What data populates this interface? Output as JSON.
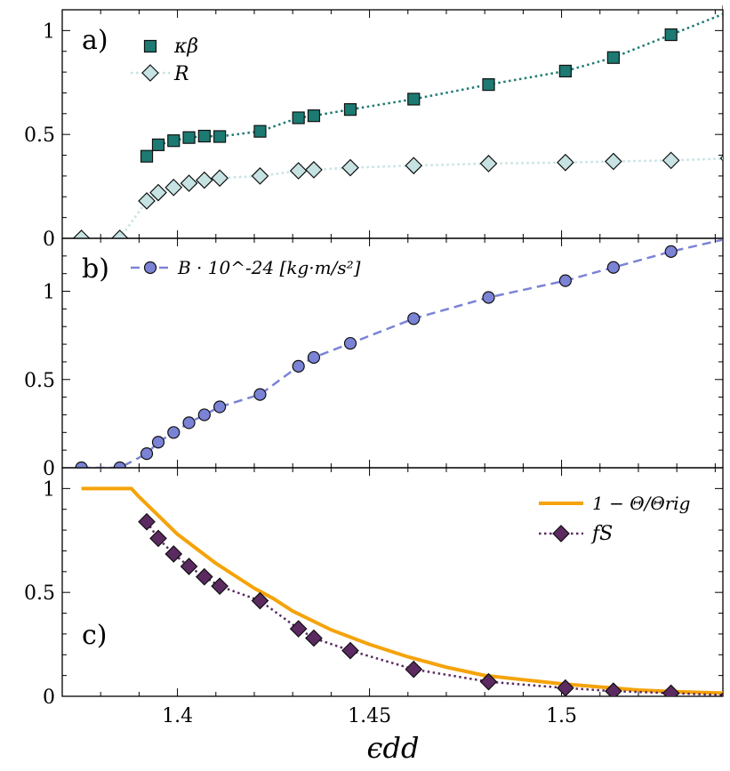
{
  "chart_data": [
    {
      "type": "scatter",
      "panel_label": "a)",
      "ylim": [
        0,
        1.1
      ],
      "ytick_labels": [
        "0",
        "0.5",
        "1"
      ],
      "ytick_values": [
        0,
        0.5,
        1
      ],
      "legend_placement": "top-left",
      "series": [
        {
          "name": "κβ",
          "color": "#1d7a73",
          "marker": "square",
          "line": "dotted",
          "points": [
            [
              1.392,
              0.395
            ],
            [
              1.395,
              0.45
            ],
            [
              1.399,
              0.47
            ],
            [
              1.403,
              0.485
            ],
            [
              1.407,
              0.492
            ],
            [
              1.411,
              0.49
            ],
            [
              1.411,
              0.49
            ],
            [
              1.4215,
              0.515
            ],
            [
              1.4315,
              0.58
            ],
            [
              1.4355,
              0.59
            ],
            [
              1.445,
              0.62
            ],
            [
              1.4615,
              0.67
            ],
            [
              1.481,
              0.74
            ],
            [
              1.501,
              0.805
            ],
            [
              1.5135,
              0.87
            ],
            [
              1.5285,
              0.98
            ],
            [
              1.5435,
              1.09
            ]
          ],
          "marker_points": [
            [
              1.392,
              0.395
            ],
            [
              1.395,
              0.45
            ],
            [
              1.399,
              0.47
            ],
            [
              1.403,
              0.485
            ],
            [
              1.407,
              0.492
            ],
            [
              1.411,
              0.49
            ],
            [
              1.4215,
              0.515
            ],
            [
              1.4315,
              0.58
            ],
            [
              1.4355,
              0.59
            ],
            [
              1.445,
              0.62
            ],
            [
              1.4615,
              0.67
            ],
            [
              1.481,
              0.74
            ],
            [
              1.501,
              0.805
            ],
            [
              1.5135,
              0.87
            ],
            [
              1.5285,
              0.98
            ],
            [
              1.5435,
              1.09
            ]
          ]
        },
        {
          "name": "R",
          "color": "#c6e2e2",
          "marker": "diamond",
          "line": "dotted",
          "points": [
            [
              1.375,
              0.0
            ],
            [
              1.385,
              0.0
            ],
            [
              1.392,
              0.18
            ],
            [
              1.395,
              0.22
            ],
            [
              1.399,
              0.245
            ],
            [
              1.403,
              0.265
            ],
            [
              1.407,
              0.28
            ],
            [
              1.411,
              0.29
            ],
            [
              1.4215,
              0.3
            ],
            [
              1.4315,
              0.325
            ],
            [
              1.4355,
              0.33
            ],
            [
              1.445,
              0.34
            ],
            [
              1.4615,
              0.35
            ],
            [
              1.481,
              0.36
            ],
            [
              1.501,
              0.365
            ],
            [
              1.5135,
              0.37
            ],
            [
              1.5285,
              0.375
            ],
            [
              1.5435,
              0.385
            ]
          ]
        }
      ]
    },
    {
      "type": "scatter",
      "panel_label": "b)",
      "ylim": [
        0,
        1.3
      ],
      "ytick_labels": [
        "0",
        "0.5",
        "1"
      ],
      "ytick_values": [
        0,
        0.5,
        1
      ],
      "legend_placement": "top-left",
      "series": [
        {
          "name": "B · 10^-24 [kg·m/s²]",
          "color": "#7b83d6",
          "marker": "circle",
          "line": "dashed",
          "points": [
            [
              1.375,
              0.0
            ],
            [
              1.385,
              0.0
            ],
            [
              1.392,
              0.08
            ],
            [
              1.395,
              0.145
            ],
            [
              1.399,
              0.2
            ],
            [
              1.403,
              0.255
            ],
            [
              1.407,
              0.3
            ],
            [
              1.411,
              0.345
            ],
            [
              1.4215,
              0.415
            ],
            [
              1.4315,
              0.575
            ],
            [
              1.4355,
              0.625
            ],
            [
              1.445,
              0.705
            ],
            [
              1.4615,
              0.845
            ],
            [
              1.481,
              0.965
            ],
            [
              1.501,
              1.06
            ],
            [
              1.5135,
              1.135
            ],
            [
              1.5285,
              1.225
            ],
            [
              1.5435,
              1.3
            ]
          ]
        }
      ]
    },
    {
      "type": "line",
      "panel_label": "c)",
      "ylim": [
        0,
        1.1
      ],
      "ytick_labels": [
        "0",
        "0.5",
        "1"
      ],
      "ytick_values": [
        0,
        0.5,
        1
      ],
      "xlabel": "ϵdd",
      "xlim": [
        1.37,
        1.542
      ],
      "xtick_labels": [
        "1.4",
        "1.45",
        "1.5"
      ],
      "xtick_values": [
        1.4,
        1.45,
        1.5
      ],
      "legend_placement": "top-right",
      "series": [
        {
          "name": "1 − Θ/Θrig",
          "color": "#f5a30a",
          "line": "solid",
          "points": [
            [
              1.375,
              1.0
            ],
            [
              1.385,
              1.0
            ],
            [
              1.388,
              1.0
            ],
            [
              1.39,
              0.96
            ],
            [
              1.395,
              0.87
            ],
            [
              1.4,
              0.78
            ],
            [
              1.405,
              0.71
            ],
            [
              1.41,
              0.64
            ],
            [
              1.415,
              0.58
            ],
            [
              1.42,
              0.52
            ],
            [
              1.425,
              0.47
            ],
            [
              1.43,
              0.41
            ],
            [
              1.44,
              0.32
            ],
            [
              1.45,
              0.25
            ],
            [
              1.46,
              0.19
            ],
            [
              1.47,
              0.14
            ],
            [
              1.48,
              0.1
            ],
            [
              1.49,
              0.08
            ],
            [
              1.5,
              0.06
            ],
            [
              1.51,
              0.045
            ],
            [
              1.52,
              0.03
            ],
            [
              1.53,
              0.022
            ],
            [
              1.5435,
              0.015
            ]
          ]
        },
        {
          "name": "fS",
          "color": "#5b2a61",
          "marker": "diamond",
          "line": "dotted",
          "points": [
            [
              1.392,
              0.84
            ],
            [
              1.395,
              0.76
            ],
            [
              1.399,
              0.685
            ],
            [
              1.403,
              0.625
            ],
            [
              1.407,
              0.575
            ],
            [
              1.411,
              0.53
            ],
            [
              1.4215,
              0.46
            ],
            [
              1.4315,
              0.325
            ],
            [
              1.4355,
              0.28
            ],
            [
              1.445,
              0.22
            ],
            [
              1.4615,
              0.13
            ],
            [
              1.481,
              0.07
            ],
            [
              1.501,
              0.04
            ],
            [
              1.5135,
              0.025
            ],
            [
              1.5285,
              0.015
            ],
            [
              1.5435,
              0.005
            ]
          ]
        }
      ]
    }
  ]
}
